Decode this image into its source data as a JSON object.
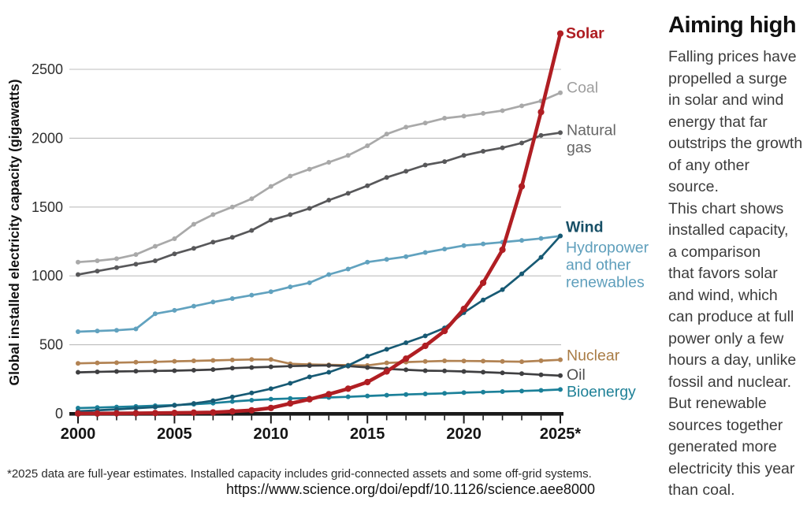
{
  "chart_data": {
    "type": "line",
    "ylabel": "Global installed electricity capacity (gigawatts)",
    "x": [
      2000,
      2001,
      2002,
      2003,
      2004,
      2005,
      2006,
      2007,
      2008,
      2009,
      2010,
      2011,
      2012,
      2013,
      2014,
      2015,
      2016,
      2017,
      2018,
      2019,
      2020,
      2021,
      2022,
      2023,
      2024,
      2025
    ],
    "x_tick_years": [
      2000,
      2005,
      2010,
      2015,
      2020,
      2025
    ],
    "x_tick_labels": [
      "2000",
      "2005",
      "2010",
      "2015",
      "2020",
      "2025*"
    ],
    "yticks": [
      0,
      500,
      1000,
      1500,
      2000,
      2500
    ],
    "ylim": [
      0,
      2750
    ],
    "grid": "horizontal",
    "legend_position": "right-end-labels",
    "series": [
      {
        "name": "Coal",
        "color": "#a9a9a9",
        "label_lines": [
          "Coal"
        ],
        "label_color": "#9e9e9e",
        "label_bold": false,
        "label_dx": 8,
        "label_dy": 0,
        "values": [
          1100,
          1110,
          1125,
          1155,
          1215,
          1270,
          1375,
          1445,
          1500,
          1560,
          1650,
          1725,
          1775,
          1825,
          1875,
          1945,
          2030,
          2080,
          2110,
          2145,
          2160,
          2180,
          2200,
          2235,
          2270,
          2330
        ]
      },
      {
        "name": "Natural gas",
        "color": "#58585a",
        "label_lines": [
          "Natural",
          "gas"
        ],
        "label_color": "#666666",
        "label_bold": false,
        "label_dx": 8,
        "label_dy": 3,
        "values": [
          1010,
          1035,
          1060,
          1085,
          1110,
          1160,
          1200,
          1245,
          1280,
          1330,
          1405,
          1445,
          1490,
          1550,
          1600,
          1655,
          1715,
          1760,
          1805,
          1830,
          1875,
          1905,
          1930,
          1965,
          2020,
          2040
        ]
      },
      {
        "name": "Hydropower and other renewables",
        "color": "#61a2bf",
        "label_lines": [
          "Hydropower",
          "and other",
          "renewables"
        ],
        "label_color": "#5f9fbc",
        "label_bold": false,
        "label_dx": 7,
        "label_dy": 21,
        "values": [
          595,
          600,
          605,
          615,
          725,
          750,
          780,
          810,
          835,
          860,
          885,
          920,
          950,
          1010,
          1050,
          1100,
          1120,
          1140,
          1170,
          1195,
          1220,
          1232,
          1245,
          1258,
          1272,
          1290
        ]
      },
      {
        "name": "Nuclear",
        "color": "#b28353",
        "label_lines": [
          "Nuclear"
        ],
        "label_color": "#a97c45",
        "label_bold": false,
        "label_dx": 8,
        "label_dy": 1,
        "values": [
          365,
          368,
          370,
          373,
          376,
          380,
          383,
          386,
          390,
          393,
          393,
          362,
          357,
          354,
          352,
          350,
          368,
          374,
          379,
          383,
          382,
          381,
          379,
          377,
          384,
          391
        ]
      },
      {
        "name": "Oil",
        "color": "#3f3f41",
        "label_lines": [
          "Oil"
        ],
        "label_color": "#4f4f4f",
        "label_bold": false,
        "label_dx": 8,
        "label_dy": 5,
        "values": [
          300,
          303,
          306,
          308,
          310,
          312,
          315,
          320,
          330,
          335,
          340,
          345,
          348,
          350,
          345,
          335,
          325,
          318,
          312,
          310,
          306,
          301,
          296,
          290,
          282,
          276
        ]
      },
      {
        "name": "Bioenergy",
        "color": "#1b8099",
        "label_lines": [
          "Bioenergy"
        ],
        "label_color": "#1f8197",
        "label_bold": false,
        "label_dx": 8,
        "label_dy": 9,
        "values": [
          40,
          44,
          48,
          52,
          57,
          62,
          68,
          76,
          88,
          97,
          105,
          110,
          113,
          117,
          122,
          128,
          134,
          139,
          143,
          147,
          152,
          156,
          160,
          164,
          169,
          175
        ]
      },
      {
        "name": "Wind",
        "color": "#175a74",
        "label_lines": [
          "Wind"
        ],
        "label_color": "#174f66",
        "label_bold": true,
        "label_dx": 7,
        "label_dy": -5,
        "values": [
          17,
          24,
          31,
          39,
          47,
          59,
          74,
          94,
          121,
          150,
          181,
          220,
          267,
          300,
          349,
          417,
          467,
          515,
          564,
          622,
          733,
          825,
          900,
          1015,
          1135,
          1290
        ]
      },
      {
        "name": "Solar",
        "color": "#b01e23",
        "label_lines": [
          "Solar"
        ],
        "label_color": "#ae1c21",
        "label_bold": true,
        "label_dx": 7,
        "label_dy": 6,
        "values": [
          1,
          1,
          2,
          3,
          4,
          5,
          7,
          9,
          16,
          24,
          41,
          74,
          104,
          141,
          181,
          229,
          306,
          399,
          492,
          600,
          760,
          950,
          1190,
          1650,
          2190,
          2760
        ]
      }
    ]
  },
  "sidebar": {
    "title": "Aiming high",
    "body_lines": [
      "Falling prices have",
      "propelled a surge",
      "in solar and wind",
      "energy that far",
      "outstrips the growth",
      "of any other source.",
      "This chart shows",
      "installed capacity,",
      "a comparison",
      "that favors solar",
      "and wind, which",
      "can produce at full",
      "power only a few",
      "hours a day, unlike",
      "fossil and nuclear.",
      "But renewable",
      "sources together",
      "generated more",
      "electricity this year",
      "than coal."
    ]
  },
  "footnote": "*2025 data are full-year estimates. Installed capacity includes grid-connected assets and some off-grid systems.",
  "doi_link": "https://www.science.org/doi/epdf/10.1126/science.aee8000"
}
